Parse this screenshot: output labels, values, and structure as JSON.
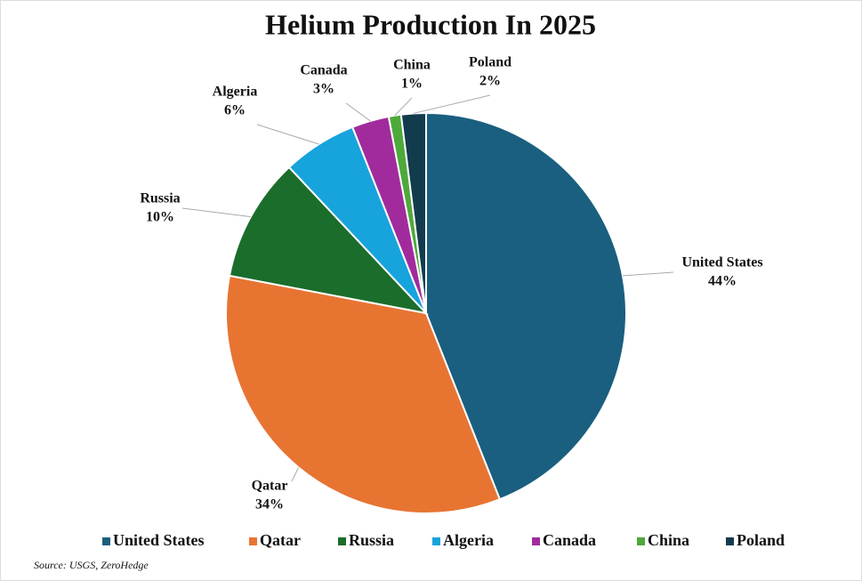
{
  "chart_data": {
    "type": "pie",
    "title": "Helium Production In 2025",
    "categories": [
      "United States",
      "Qatar",
      "Russia",
      "Algeria",
      "Canada",
      "China",
      "Poland"
    ],
    "values": [
      44,
      34,
      10,
      6,
      3,
      1,
      2
    ],
    "value_labels": [
      "44%",
      "34%",
      "10%",
      "6%",
      "3%",
      "1%",
      "2%"
    ],
    "colors": [
      "#1a5f7f",
      "#e87432",
      "#1b6d2b",
      "#17a3dc",
      "#a12b9c",
      "#4ea93b",
      "#133b4e"
    ],
    "source": "Source: USGS, ZeroHedge"
  }
}
